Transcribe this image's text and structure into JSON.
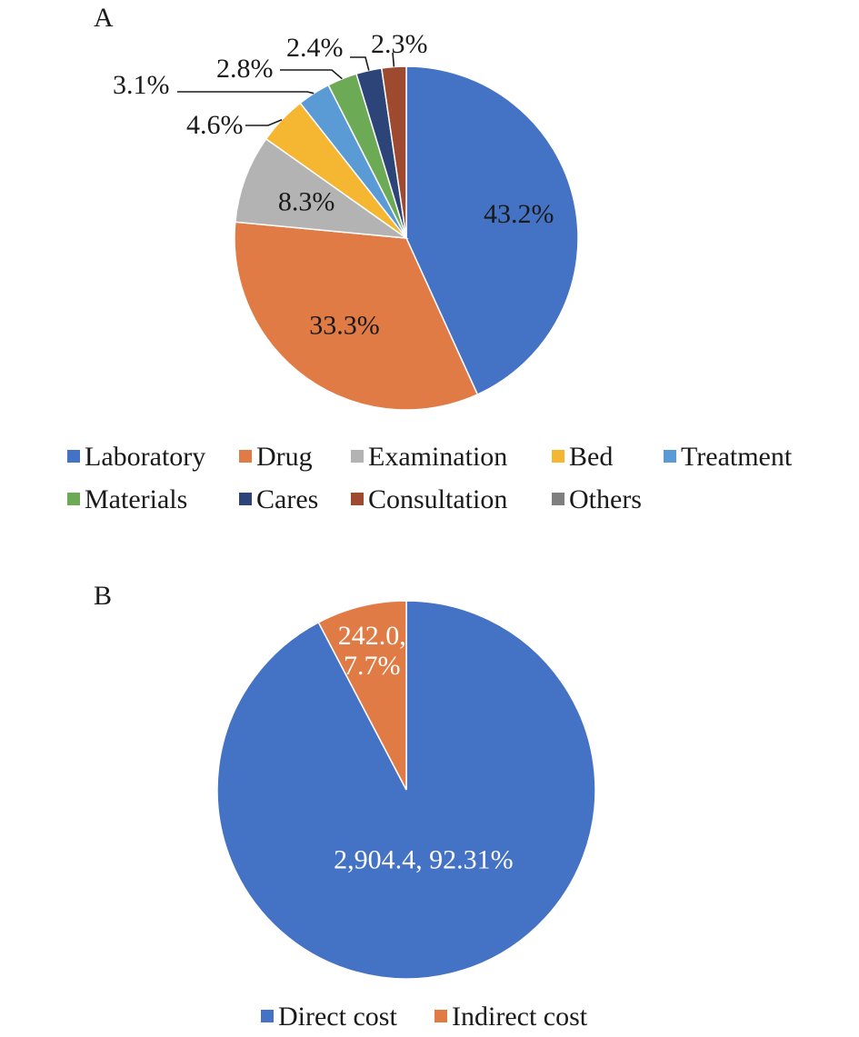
{
  "panels": [
    {
      "letter": "A",
      "chart_data": {
        "type": "pie",
        "categories": [
          "Laboratory",
          "Drug",
          "Examination",
          "Bed",
          "Treatment",
          "Materials",
          "Cares",
          "Consultation",
          "Others"
        ],
        "values": [
          43.2,
          33.3,
          8.3,
          4.6,
          3.1,
          2.8,
          2.4,
          2.3,
          0
        ],
        "data_labels": [
          "43.2%",
          "33.3%",
          "8.3%",
          "4.6%",
          "3.1%",
          "2.8%",
          "2.4%",
          "2.3%",
          ""
        ],
        "colors": [
          "#4472C4",
          "#E07B45",
          "#B3B3B3",
          "#F5B731",
          "#5A9BD5",
          "#6DAA55",
          "#2C4478",
          "#9E4A30",
          "#7F7F7F"
        ],
        "start": "12 o'clock",
        "direction": "clockwise",
        "legend": "bottom"
      }
    },
    {
      "letter": "B",
      "chart_data": {
        "type": "pie",
        "categories": [
          "Direct cost",
          "Indirect cost"
        ],
        "values": [
          2904.4,
          242.0
        ],
        "data_labels": [
          "2,904.4, 92.31%",
          "242.0,\n7.7%"
        ],
        "colors": [
          "#4472C4",
          "#E07B45"
        ],
        "start": "12 o'clock",
        "direction": "clockwise",
        "legend": "bottom"
      }
    }
  ]
}
